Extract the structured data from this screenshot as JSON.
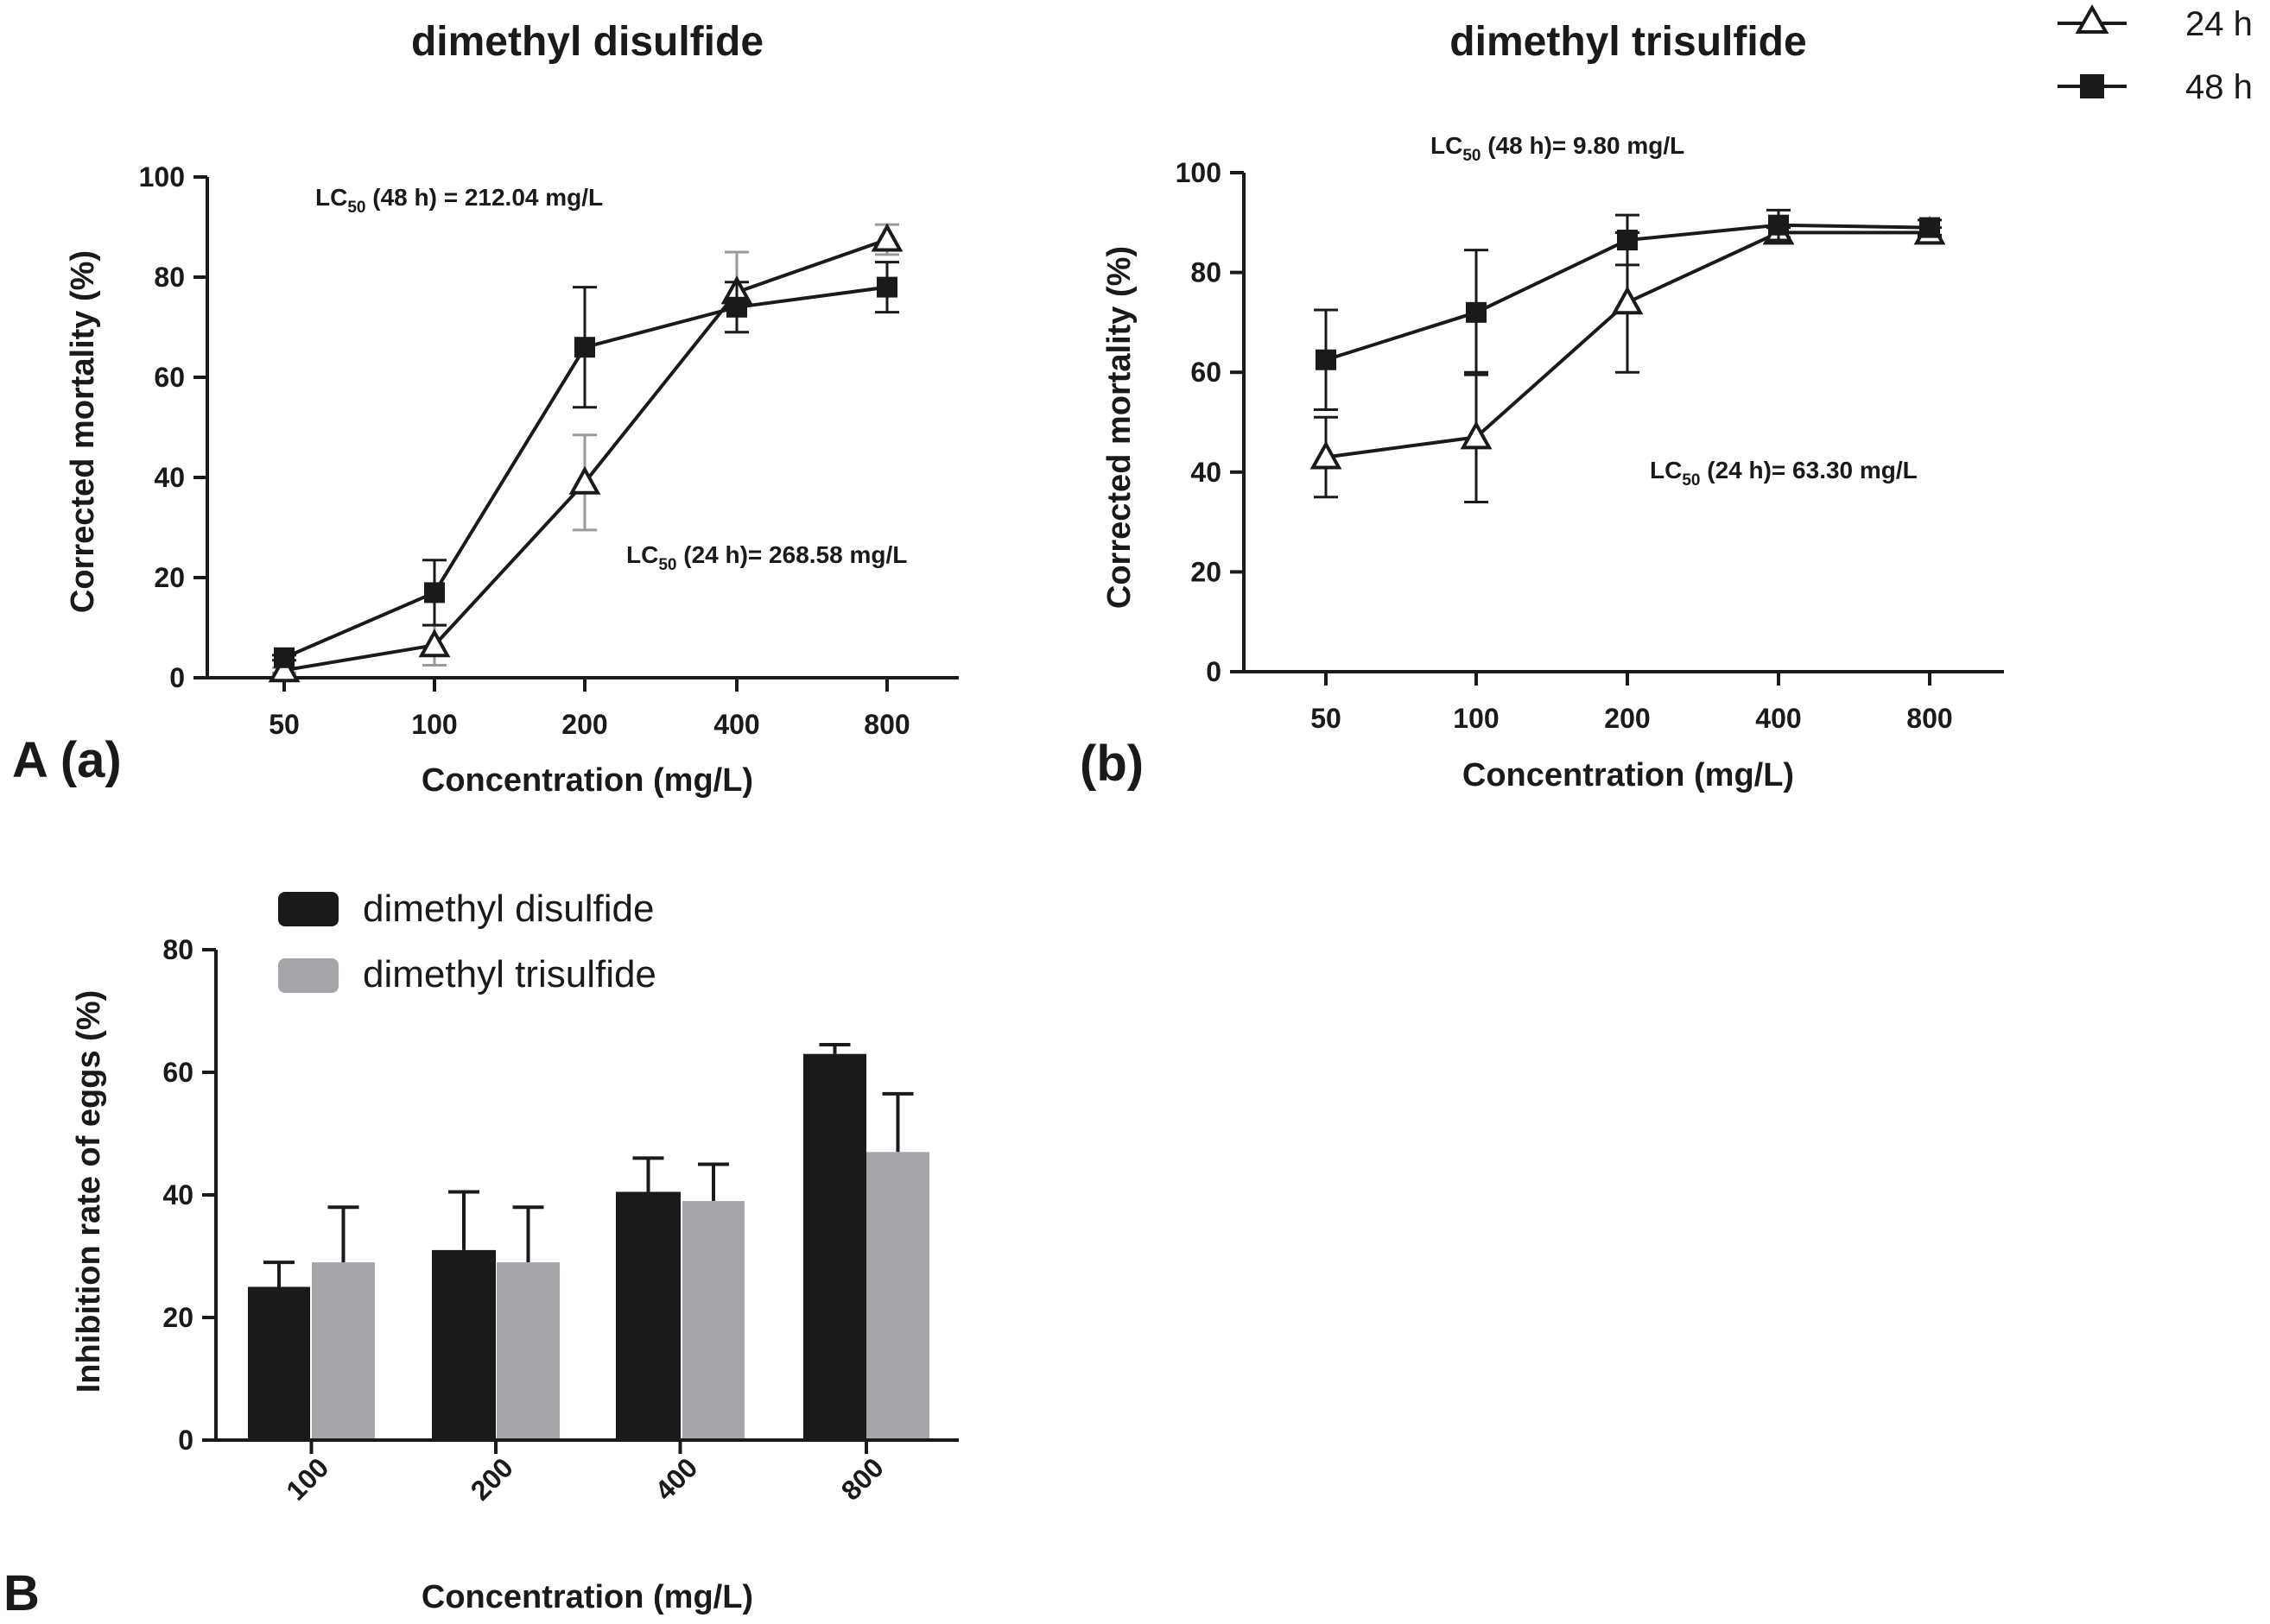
{
  "legend": {
    "series_24h": "24 h",
    "series_48h": "48 h"
  },
  "panel_labels": {
    "a": "A (a)",
    "b": "(b)",
    "B": "B"
  },
  "colors": {
    "ink": "#1a1a1a",
    "grey_bar": "#a6a6aa",
    "grey_err": "#9a9a9a"
  },
  "chart_data": [
    {
      "type": "line",
      "panel": "A (a)",
      "title": "dimethyl disulfide",
      "xlabel": "Concentration (mg/L)",
      "ylabel": "Corrected mortality (%)",
      "categories": [
        "50",
        "100",
        "200",
        "400",
        "800"
      ],
      "yticks": [
        "0",
        "20",
        "40",
        "60",
        "80",
        "100"
      ],
      "ylim": [
        0,
        100
      ],
      "series": [
        {
          "name": "24 h",
          "marker": "open-triangle",
          "values": [
            1.5,
            6.5,
            39,
            77,
            87.5
          ],
          "errors": [
            0.5,
            4,
            9.5,
            8,
            3
          ]
        },
        {
          "name": "48 h",
          "marker": "filled-square",
          "values": [
            4,
            17,
            66,
            74,
            78
          ],
          "errors": [
            0.5,
            6.5,
            12,
            5,
            5
          ]
        }
      ],
      "annotations": [
        {
          "prefix": "LC",
          "sub": "50",
          "text": " (48 h) = 212.04 mg/L"
        },
        {
          "prefix": "LC",
          "sub": "50",
          "text": " (24 h)= 268.58 mg/L"
        }
      ]
    },
    {
      "type": "line",
      "panel": "(b)",
      "title": "dimethyl trisulfide",
      "xlabel": "Concentration (mg/L)",
      "ylabel": "Corrected mortality (%)",
      "categories": [
        "50",
        "100",
        "200",
        "400",
        "800"
      ],
      "yticks": [
        "0",
        "20",
        "40",
        "60",
        "80",
        "100"
      ],
      "ylim": [
        0,
        100
      ],
      "series": [
        {
          "name": "24 h",
          "marker": "open-triangle",
          "values": [
            43,
            47,
            74,
            88,
            88
          ],
          "errors": [
            8,
            13,
            14,
            1,
            1
          ]
        },
        {
          "name": "48 h",
          "marker": "filled-square",
          "values": [
            62.5,
            72,
            86.5,
            89.5,
            89
          ],
          "errors": [
            10,
            12.5,
            5,
            3,
            1.5
          ]
        }
      ],
      "annotations": [
        {
          "prefix": "LC",
          "sub": "50",
          "text": " (48 h)= 9.80 mg/L"
        },
        {
          "prefix": "LC",
          "sub": "50",
          "text": " (24 h)= 63.30 mg/L"
        }
      ]
    },
    {
      "type": "bar",
      "panel": "B",
      "xlabel": "Concentration (mg/L)",
      "ylabel": "Inhibition rate of eggs (%)",
      "categories": [
        "100",
        "200",
        "400",
        "800"
      ],
      "yticks": [
        "0",
        "20",
        "40",
        "60",
        "80"
      ],
      "ylim": [
        0,
        80
      ],
      "series": [
        {
          "name": "dimethyl disulfide",
          "values": [
            25,
            31,
            40.5,
            63
          ],
          "errors": [
            4,
            9.5,
            5.5,
            1.5
          ]
        },
        {
          "name": "dimethyl trisulfide",
          "values": [
            29,
            29,
            39,
            47
          ],
          "errors": [
            9,
            9,
            6,
            9.5
          ]
        }
      ]
    }
  ]
}
